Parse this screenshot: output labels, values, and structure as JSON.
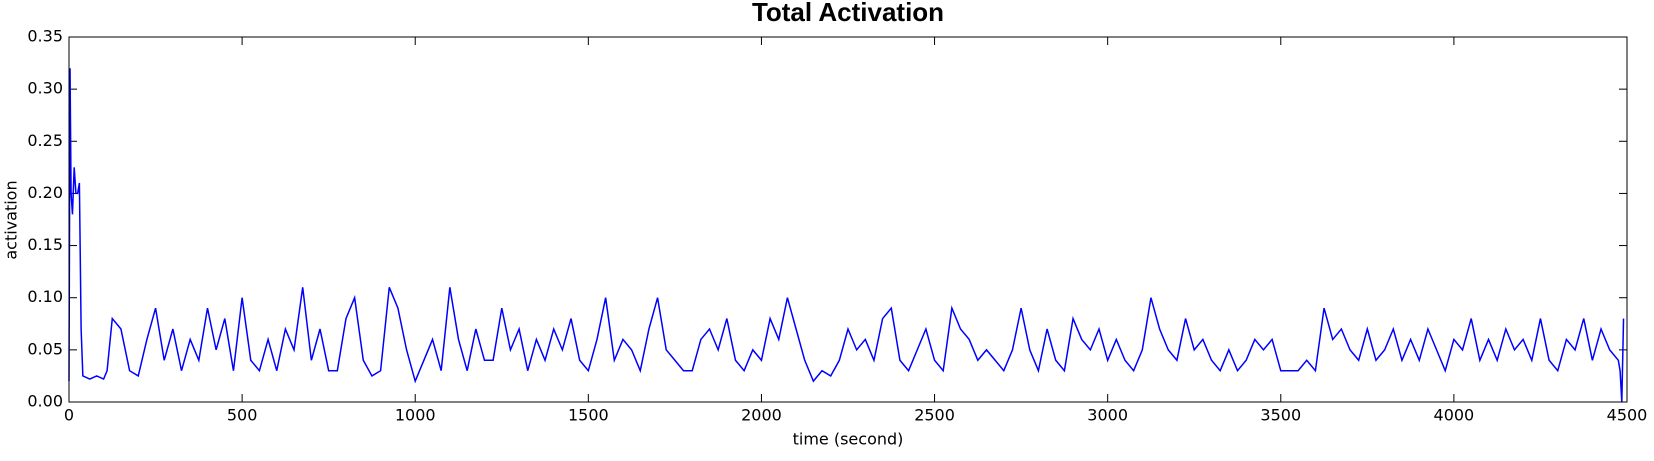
{
  "chart_data": {
    "type": "line",
    "title": "Total Activation",
    "x_label": "time (second)",
    "y_label": "activation",
    "xlim": [
      0,
      4500
    ],
    "ylim": [
      0,
      0.35
    ],
    "xticks": [
      0,
      500,
      1000,
      1500,
      2000,
      2500,
      3000,
      3500,
      4000,
      4500
    ],
    "yticks": [
      {
        "value": 0,
        "label": "0.00"
      },
      {
        "value": 0.05,
        "label": "0.05"
      },
      {
        "value": 0.1,
        "label": "0.10"
      },
      {
        "value": 0.15,
        "label": "0.15"
      },
      {
        "value": 0.2,
        "label": "0.20"
      },
      {
        "value": 0.25,
        "label": "0.25"
      },
      {
        "value": 0.3,
        "label": "0.30"
      },
      {
        "value": 0.35,
        "label": "0.35"
      }
    ],
    "grid": false,
    "color": "#0000ff",
    "x": [
      0,
      3,
      6,
      10,
      15,
      20,
      25,
      30,
      35,
      40,
      60,
      80,
      100,
      110,
      125,
      150,
      175,
      200,
      225,
      250,
      275,
      300,
      325,
      350,
      375,
      400,
      425,
      450,
      475,
      500,
      525,
      550,
      575,
      600,
      625,
      650,
      675,
      700,
      725,
      750,
      775,
      800,
      825,
      850,
      875,
      900,
      925,
      950,
      975,
      1000,
      1025,
      1050,
      1075,
      1100,
      1125,
      1150,
      1175,
      1200,
      1225,
      1250,
      1275,
      1300,
      1325,
      1350,
      1375,
      1400,
      1425,
      1450,
      1475,
      1500,
      1525,
      1550,
      1575,
      1600,
      1625,
      1650,
      1675,
      1700,
      1725,
      1750,
      1775,
      1800,
      1825,
      1850,
      1875,
      1900,
      1925,
      1950,
      1975,
      2000,
      2025,
      2050,
      2075,
      2100,
      2125,
      2150,
      2175,
      2200,
      2225,
      2250,
      2275,
      2300,
      2325,
      2350,
      2375,
      2400,
      2425,
      2450,
      2475,
      2500,
      2525,
      2550,
      2575,
      2600,
      2625,
      2650,
      2675,
      2700,
      2725,
      2750,
      2775,
      2800,
      2825,
      2850,
      2875,
      2900,
      2925,
      2950,
      2975,
      3000,
      3025,
      3050,
      3075,
      3100,
      3125,
      3150,
      3175,
      3200,
      3225,
      3250,
      3275,
      3300,
      3325,
      3350,
      3375,
      3400,
      3425,
      3450,
      3475,
      3500,
      3525,
      3550,
      3575,
      3600,
      3625,
      3650,
      3675,
      3700,
      3725,
      3750,
      3775,
      3800,
      3825,
      3850,
      3875,
      3900,
      3925,
      3950,
      3975,
      4000,
      4025,
      4050,
      4075,
      4100,
      4125,
      4150,
      4175,
      4200,
      4225,
      4250,
      4275,
      4300,
      4325,
      4350,
      4375,
      4400,
      4425,
      4450,
      4475,
      4480,
      4485,
      4490
    ],
    "values": [
      0.02,
      0.32,
      0.2,
      0.18,
      0.225,
      0.2,
      0.2,
      0.21,
      0.07,
      0.025,
      0.022,
      0.025,
      0.022,
      0.03,
      0.08,
      0.07,
      0.03,
      0.025,
      0.06,
      0.09,
      0.04,
      0.07,
      0.03,
      0.06,
      0.04,
      0.09,
      0.05,
      0.08,
      0.03,
      0.1,
      0.04,
      0.03,
      0.06,
      0.03,
      0.07,
      0.05,
      0.11,
      0.04,
      0.07,
      0.03,
      0.03,
      0.08,
      0.1,
      0.04,
      0.025,
      0.03,
      0.11,
      0.09,
      0.05,
      0.02,
      0.04,
      0.06,
      0.03,
      0.11,
      0.06,
      0.03,
      0.07,
      0.04,
      0.04,
      0.09,
      0.05,
      0.07,
      0.03,
      0.06,
      0.04,
      0.07,
      0.05,
      0.08,
      0.04,
      0.03,
      0.06,
      0.1,
      0.04,
      0.06,
      0.05,
      0.03,
      0.07,
      0.1,
      0.05,
      0.04,
      0.03,
      0.03,
      0.06,
      0.07,
      0.05,
      0.08,
      0.04,
      0.03,
      0.05,
      0.04,
      0.08,
      0.06,
      0.1,
      0.07,
      0.04,
      0.02,
      0.03,
      0.025,
      0.04,
      0.07,
      0.05,
      0.06,
      0.04,
      0.08,
      0.09,
      0.04,
      0.03,
      0.05,
      0.07,
      0.04,
      0.03,
      0.09,
      0.07,
      0.06,
      0.04,
      0.05,
      0.04,
      0.03,
      0.05,
      0.09,
      0.05,
      0.03,
      0.07,
      0.04,
      0.03,
      0.08,
      0.06,
      0.05,
      0.07,
      0.04,
      0.06,
      0.04,
      0.03,
      0.05,
      0.1,
      0.07,
      0.05,
      0.04,
      0.08,
      0.05,
      0.06,
      0.04,
      0.03,
      0.05,
      0.03,
      0.04,
      0.06,
      0.05,
      0.06,
      0.03,
      0.03,
      0.03,
      0.04,
      0.03,
      0.09,
      0.06,
      0.07,
      0.05,
      0.04,
      0.07,
      0.04,
      0.05,
      0.07,
      0.04,
      0.06,
      0.04,
      0.07,
      0.05,
      0.03,
      0.06,
      0.05,
      0.08,
      0.04,
      0.06,
      0.04,
      0.07,
      0.05,
      0.06,
      0.04,
      0.08,
      0.04,
      0.03,
      0.06,
      0.05,
      0.08,
      0.04,
      0.07,
      0.05,
      0.04,
      0.03,
      0,
      0.08
    ]
  }
}
